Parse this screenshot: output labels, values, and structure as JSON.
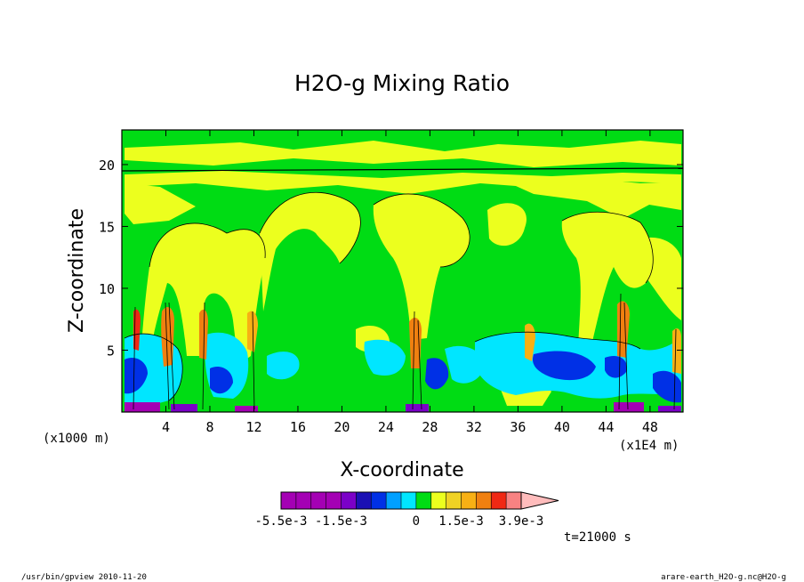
{
  "chart_data": {
    "type": "heatmap",
    "title": "H2O-g Mixing Ratio",
    "xlabel": "X-coordinate",
    "ylabel": "Z-coordinate",
    "x_unit": "(x1E4 m)",
    "y_unit": "(x1000 m)",
    "xlim": [
      0,
      51
    ],
    "ylim": [
      0,
      22.8
    ],
    "x_ticks": [
      "4",
      "8",
      "12",
      "16",
      "20",
      "24",
      "28",
      "32",
      "36",
      "40",
      "44",
      "48"
    ],
    "x_tick_values": [
      4,
      8,
      12,
      16,
      20,
      24,
      28,
      32,
      36,
      40,
      44,
      48
    ],
    "y_ticks": [
      "5",
      "10",
      "15",
      "20"
    ],
    "y_tick_values": [
      5,
      10,
      15,
      20
    ],
    "colorbar": {
      "colors": [
        "#a400b4",
        "#a400b4",
        "#a400b4",
        "#a400b4",
        "#7b00c8",
        "#1a10b4",
        "#0030e6",
        "#00a0ff",
        "#00e6ff",
        "#00dc14",
        "#ecff1e",
        "#f0d224",
        "#f8b014",
        "#f08010",
        "#f02814",
        "#f88282",
        "#ffbcbc"
      ],
      "tick_labels": [
        "-5.5e-3",
        "-1.5e-3",
        "0",
        "1.5e-3",
        "3.9e-3"
      ],
      "tick_index": [
        0,
        4,
        9,
        12,
        16
      ],
      "extend": "max"
    },
    "time_label": "t=21000 s"
  },
  "footer": {
    "left": "/usr/bin/gpview  2010-11-20",
    "right": "arare-earth_H2O-g.nc@H2O-g"
  }
}
